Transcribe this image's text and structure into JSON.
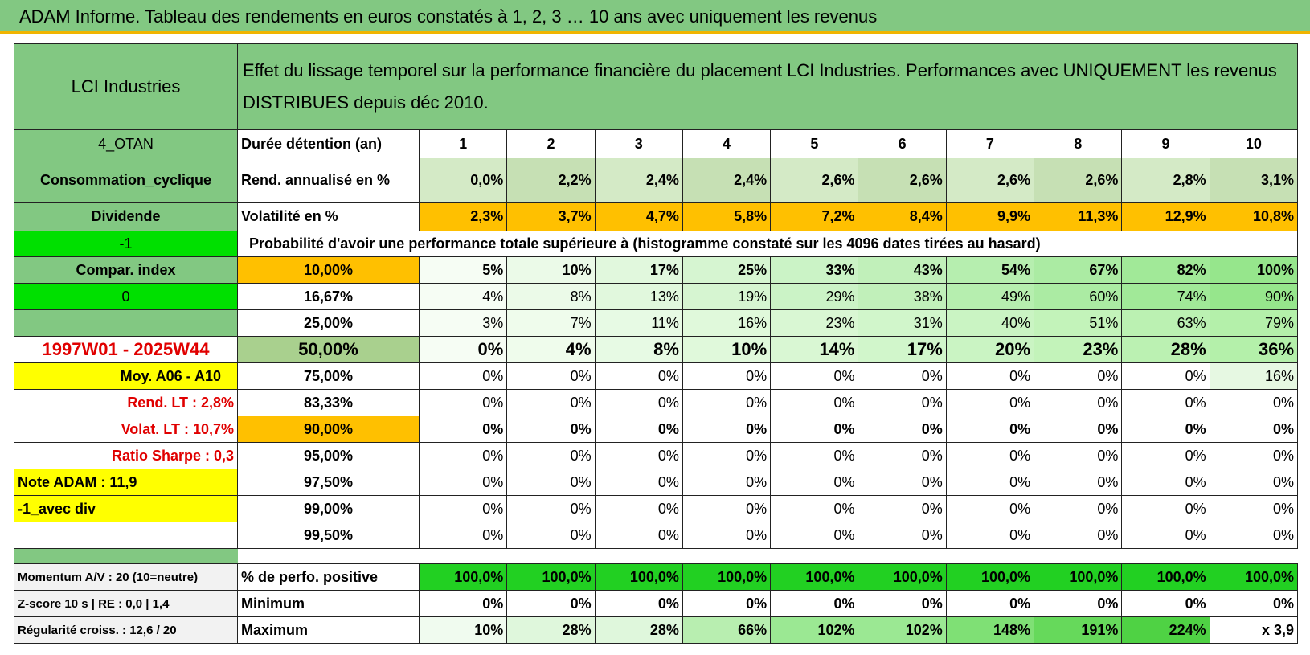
{
  "title": "ADAM Informe. Tableau des rendements en euros constatés à 1, 2, 3 … 10 ans avec uniquement les revenus",
  "header": {
    "name": "LCI Industries",
    "description": "Effet du lissage temporel sur la performance financière du placement LCI Industries. Performances avec UNIQUEMENT les revenus DISTRIBUES depuis déc 2010."
  },
  "rows": [
    {
      "left": "4_OTAN",
      "label": "Durée détention (an)",
      "cells": [
        "1",
        "2",
        "3",
        "4",
        "5",
        "6",
        "7",
        "8",
        "9",
        "10"
      ]
    },
    {
      "left": "Consommation_cyclique",
      "label": "Rend. annualisé en %",
      "cells": [
        "0,0%",
        "2,2%",
        "2,4%",
        "2,4%",
        "2,6%",
        "2,6%",
        "2,6%",
        "2,6%",
        "2,8%",
        "3,1%"
      ]
    },
    {
      "left": "Dividende",
      "label": "Volatilité en %",
      "cells": [
        "2,3%",
        "3,7%",
        "4,7%",
        "5,8%",
        "7,2%",
        "8,4%",
        "9,9%",
        "11,3%",
        "12,9%",
        "10,8%"
      ]
    },
    {
      "left": "-1",
      "label": "Probabilité d'avoir une performance totale supérieure à (histogramme constaté sur les 4096 dates tirées au hasard)"
    },
    {
      "left": "Compar. index",
      "label": "10,00%",
      "cells": [
        "5%",
        "10%",
        "17%",
        "25%",
        "33%",
        "43%",
        "54%",
        "67%",
        "82%",
        "100%"
      ]
    },
    {
      "left": "0",
      "label": "16,67%",
      "cells": [
        "4%",
        "8%",
        "13%",
        "19%",
        "29%",
        "38%",
        "49%",
        "60%",
        "74%",
        "90%"
      ]
    },
    {
      "label": "25,00%",
      "cells": [
        "3%",
        "7%",
        "11%",
        "16%",
        "23%",
        "31%",
        "40%",
        "51%",
        "63%",
        "79%"
      ]
    },
    {
      "left": "1997W01 - 2025W44",
      "label": "50,00%",
      "cells": [
        "0%",
        "4%",
        "8%",
        "10%",
        "14%",
        "17%",
        "20%",
        "23%",
        "28%",
        "36%"
      ]
    },
    {
      "left": "Moy. A06 - A10",
      "label": "75,00%",
      "cells": [
        "0%",
        "0%",
        "0%",
        "0%",
        "0%",
        "0%",
        "0%",
        "0%",
        "0%",
        "16%"
      ]
    },
    {
      "left": "Rend. LT :   2,8%",
      "label": "83,33%",
      "cells": [
        "0%",
        "0%",
        "0%",
        "0%",
        "0%",
        "0%",
        "0%",
        "0%",
        "0%",
        "0%"
      ]
    },
    {
      "left": "Volat. LT :   10,7%",
      "label": "90,00%",
      "cells": [
        "0%",
        "0%",
        "0%",
        "0%",
        "0%",
        "0%",
        "0%",
        "0%",
        "0%",
        "0%"
      ]
    },
    {
      "left": "Ratio Sharpe :    0,3",
      "label": "95,00%",
      "cells": [
        "0%",
        "0%",
        "0%",
        "0%",
        "0%",
        "0%",
        "0%",
        "0%",
        "0%",
        "0%"
      ]
    },
    {
      "left": "Note ADAM : 11,9",
      "label": "97,50%",
      "cells": [
        "0%",
        "0%",
        "0%",
        "0%",
        "0%",
        "0%",
        "0%",
        "0%",
        "0%",
        "0%"
      ]
    },
    {
      "left": "-1_avec div",
      "label": "99,00%",
      "cells": [
        "0%",
        "0%",
        "0%",
        "0%",
        "0%",
        "0%",
        "0%",
        "0%",
        "0%",
        "0%"
      ]
    },
    {
      "label": "99,50%",
      "cells": [
        "0%",
        "0%",
        "0%",
        "0%",
        "0%",
        "0%",
        "0%",
        "0%",
        "0%",
        "0%"
      ]
    },
    {
      "left": "Momentum A/V : 20 (10=neutre)",
      "label": "% de perfo. positive",
      "cells": [
        "100,0%",
        "100,0%",
        "100,0%",
        "100,0%",
        "100,0%",
        "100,0%",
        "100,0%",
        "100,0%",
        "100,0%",
        "100,0%"
      ]
    },
    {
      "left": "Z-score 10 s | RE : 0,0 | 1,4",
      "label": "Minimum",
      "cells": [
        "0%",
        "0%",
        "0%",
        "0%",
        "0%",
        "0%",
        "0%",
        "0%",
        "0%",
        "0%"
      ]
    },
    {
      "left": "Régularité croiss. : 12,6 / 20",
      "label": "Maximum",
      "cells": [
        "10%",
        "28%",
        "28%",
        "66%",
        "102%",
        "102%",
        "148%",
        "191%",
        "224%",
        "x 3,9"
      ]
    }
  ]
}
